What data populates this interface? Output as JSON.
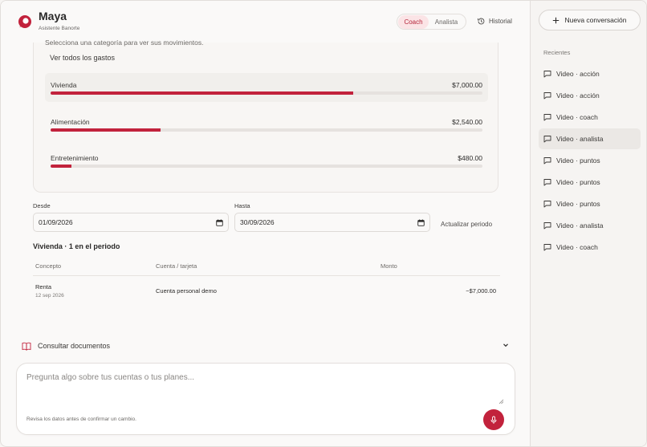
{
  "header": {
    "brand_name": "Maya",
    "brand_subtitle": "Asistente Banorte",
    "modes": [
      "Coach",
      "Analista"
    ],
    "active_mode": "Coach",
    "history_label": "Historial"
  },
  "spending": {
    "hint": "Selecciona una categoría para ver sus movimientos.",
    "see_all": "Ver todos los gastos",
    "categories": [
      {
        "name": "Vivienda",
        "amount": "$7,000.00",
        "share": 0.7,
        "selected": true
      },
      {
        "name": "Alimentación",
        "amount": "$2,540.00",
        "share": 0.254,
        "selected": false
      },
      {
        "name": "Entretenimiento",
        "amount": "$480.00",
        "share": 0.048,
        "selected": false
      }
    ]
  },
  "period": {
    "from_label": "Desde",
    "from_value": "01/09/2026",
    "to_label": "Hasta",
    "to_value": "30/09/2026",
    "update_label": "Actualizar periodo",
    "title": "Vivienda · 1 en el periodo"
  },
  "table": {
    "headers": [
      "Concepto",
      "Cuenta / tarjeta",
      "Monto"
    ],
    "rows": [
      {
        "concept": "Renta",
        "date": "12 sep 2026",
        "account": "Cuenta personal demo",
        "amount": "−$7,000.00"
      }
    ]
  },
  "docs": {
    "label": "Consultar documentos"
  },
  "composer": {
    "placeholder": "Pregunta algo sobre tus cuentas o tus planes...",
    "note": "Revisa los datos antes de confirmar un cambio."
  },
  "sidebar": {
    "new_chat": "Nueva conversación",
    "recent_label": "Recientes",
    "items": [
      {
        "label": "Video · acción"
      },
      {
        "label": "Video · acción"
      },
      {
        "label": "Video · coach"
      },
      {
        "label": "Video · analista"
      },
      {
        "label": "Video · puntos"
      },
      {
        "label": "Video · puntos"
      },
      {
        "label": "Video · puntos"
      },
      {
        "label": "Video · analista"
      },
      {
        "label": "Video · coach"
      }
    ],
    "active_index": 3
  },
  "colors": {
    "accent": "#c2223c",
    "accent_soft": "#fbe4e6",
    "track": "#e6e2df"
  }
}
